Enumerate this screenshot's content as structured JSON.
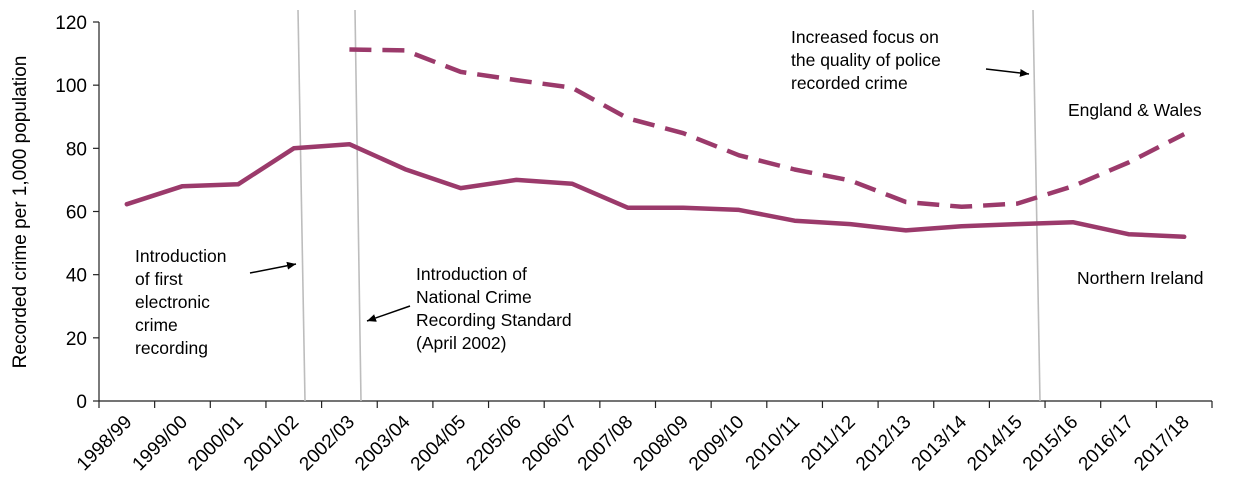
{
  "chart_data": {
    "type": "line",
    "title": "",
    "xlabel": "",
    "ylabel": "Recorded crime per 1,000 population",
    "ylim": [
      0,
      120
    ],
    "yticks": [
      0,
      20,
      40,
      60,
      80,
      100,
      120
    ],
    "grid": false,
    "legend": "none",
    "categories": [
      "1998/99",
      "1999/00",
      "2000/01",
      "2001/02",
      "2002/03",
      "2003/04",
      "2004/05",
      "2205/06",
      "2006/07",
      "2007/08",
      "2008/09",
      "2009/10",
      "2010/11",
      "2011/12",
      "2012/13",
      "2013/14",
      "2014/15",
      "2015/16",
      "2016/17",
      "2017/18"
    ],
    "series": [
      {
        "name": "England & Wales",
        "style": "dashed",
        "color": "#9B3A6B",
        "values": [
          null,
          null,
          null,
          null,
          111.3,
          111.0,
          104.2,
          101.6,
          99.2,
          89.5,
          84.8,
          77.8,
          73.3,
          69.8,
          63.0,
          61.5,
          62.5,
          68.0,
          75.5,
          84.5
        ]
      },
      {
        "name": "Northern Ireland",
        "style": "solid",
        "color": "#9B3A6B",
        "values": [
          62.3,
          68.0,
          68.6,
          80.0,
          81.3,
          73.4,
          67.4,
          70.0,
          68.8,
          61.2,
          61.2,
          60.5,
          57.1,
          56.0,
          54.0,
          55.3,
          56.0,
          56.6,
          52.8,
          52.0
        ]
      }
    ],
    "vertical_markers": [
      {
        "id": "electronic",
        "before_category": "2001/02",
        "label_lines": [
          "Introduction",
          "of first",
          "electronic",
          "crime",
          "recording"
        ]
      },
      {
        "id": "ncrs",
        "before_category": "2002/03",
        "label_lines": [
          "Introduction of",
          "National Crime",
          "Recording Standard",
          "(April 2002)"
        ]
      },
      {
        "id": "quality",
        "before_category": "2014/15",
        "label_lines": [
          "Increased focus on",
          "the quality of police",
          "recorded crime"
        ]
      }
    ]
  }
}
